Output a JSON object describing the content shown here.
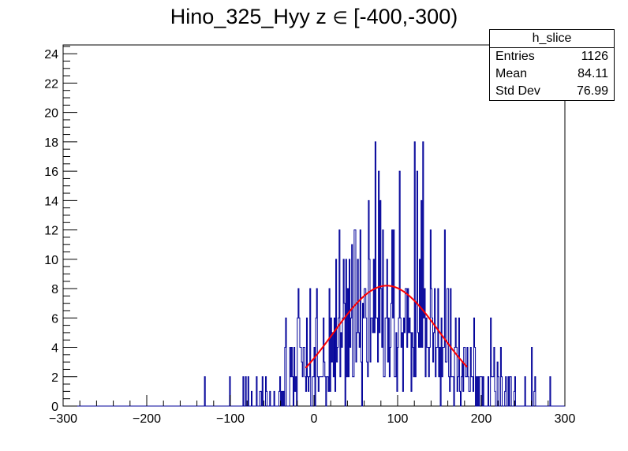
{
  "chart_data": {
    "type": "histogram",
    "title_prefix": "Hino_325_Hyy z",
    "title_symbol": "∈",
    "title_suffix": "[-400,-300)",
    "xlim": [
      -300,
      300
    ],
    "ylim": [
      0,
      24.6
    ],
    "bins": 600,
    "x_ticks": [
      -300,
      -200,
      -100,
      0,
      100,
      200,
      300
    ],
    "y_ticks": [
      0,
      2,
      4,
      6,
      8,
      10,
      12,
      14,
      16,
      18,
      20,
      22,
      24
    ],
    "histogram_color": "#000099",
    "fit_color": "#ff0000",
    "fit": {
      "type": "gaussian",
      "x_range": [
        -10,
        183
      ],
      "amplitude": 8.2,
      "mean": 87,
      "sigma": 64
    },
    "stats": {
      "name": "h_slice",
      "rows": [
        {
          "label": "Entries",
          "value": "1126"
        },
        {
          "label": "Mean",
          "value": "84.11"
        },
        {
          "label": "Std Dev",
          "value": "76.99"
        }
      ]
    }
  }
}
